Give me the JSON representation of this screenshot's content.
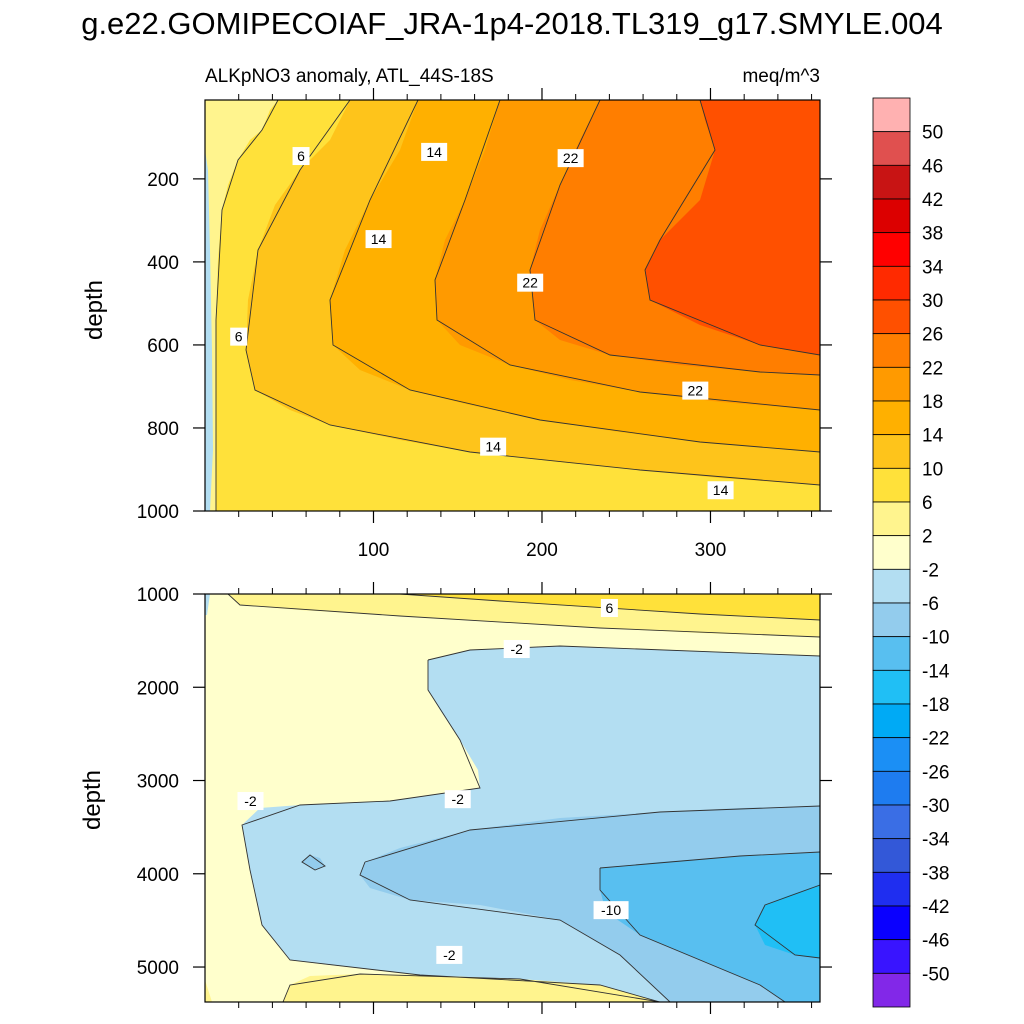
{
  "title": "g.e22.GOMIPECOIAF_JRA-1p4-2018.TL319_g17.SMYLE.004",
  "chart_data": [
    {
      "type": "contour",
      "panel": "upper",
      "left_label": "ALKpNO3 anomaly, ATL_44S-18S",
      "right_label": "meq/m^3",
      "ylabel": "depth",
      "xlim": [
        0,
        365
      ],
      "ylim": [
        10,
        1000
      ],
      "y_inverted": true,
      "xticks": [
        100,
        200,
        300
      ],
      "yticks": [
        200,
        400,
        600,
        800,
        1000
      ],
      "contour_levels": [
        -2,
        2,
        6,
        10,
        14,
        18,
        22,
        26,
        30
      ],
      "contour_labels": [
        {
          "text": "6",
          "x": 57,
          "y": 145
        },
        {
          "text": "14",
          "x": 136,
          "y": 135
        },
        {
          "text": "22",
          "x": 217,
          "y": 150
        },
        {
          "text": "14",
          "x": 103,
          "y": 345
        },
        {
          "text": "22",
          "x": 193,
          "y": 450
        },
        {
          "text": "6",
          "x": 20,
          "y": 580
        },
        {
          "text": "22",
          "x": 291,
          "y": 710
        },
        {
          "text": "14",
          "x": 171,
          "y": 845
        },
        {
          "text": "14",
          "x": 306,
          "y": 950
        }
      ]
    },
    {
      "type": "contour",
      "panel": "lower",
      "ylabel": "depth",
      "xlim": [
        0,
        365
      ],
      "ylim": [
        1000,
        5375
      ],
      "y_inverted": true,
      "yticks": [
        1000,
        2000,
        3000,
        4000,
        5000
      ],
      "contour_levels": [
        -14,
        -10,
        -6,
        -2,
        2,
        6
      ],
      "contour_labels": [
        {
          "text": "6",
          "x": 240,
          "y": 1150
        },
        {
          "text": "-2",
          "x": 185,
          "y": 1590
        },
        {
          "text": "-2",
          "x": 27,
          "y": 3220
        },
        {
          "text": "-2",
          "x": 150,
          "y": 3200
        },
        {
          "text": "-10",
          "x": 241,
          "y": 4390
        },
        {
          "text": "-2",
          "x": 145,
          "y": 4870
        }
      ]
    }
  ],
  "colorbar": {
    "levels": [
      "50",
      "46",
      "42",
      "38",
      "34",
      "30",
      "26",
      "22",
      "18",
      "14",
      "10",
      "6",
      "2",
      "-2",
      "-6",
      "-10",
      "-14",
      "-18",
      "-22",
      "-26",
      "-30",
      "-34",
      "-38",
      "-42",
      "-46",
      "-50"
    ],
    "colors": [
      "#ffb1b1",
      "#e0504f",
      "#c81414",
      "#dc0000",
      "#ff0000",
      "#ff2a00",
      "#ff5000",
      "#ff7e00",
      "#ff9a00",
      "#ffb000",
      "#fec41b",
      "#ffe13a",
      "#fff48e",
      "#ffffcc",
      "#b3def2",
      "#93cced",
      "#58bff0",
      "#20bff5",
      "#00aaf5",
      "#1b8ff5",
      "#1e7cf0",
      "#3a6ee5",
      "#3358d8",
      "#1f2ef0",
      "#0a00ff",
      "#3914ff",
      "#8228e8"
    ]
  }
}
